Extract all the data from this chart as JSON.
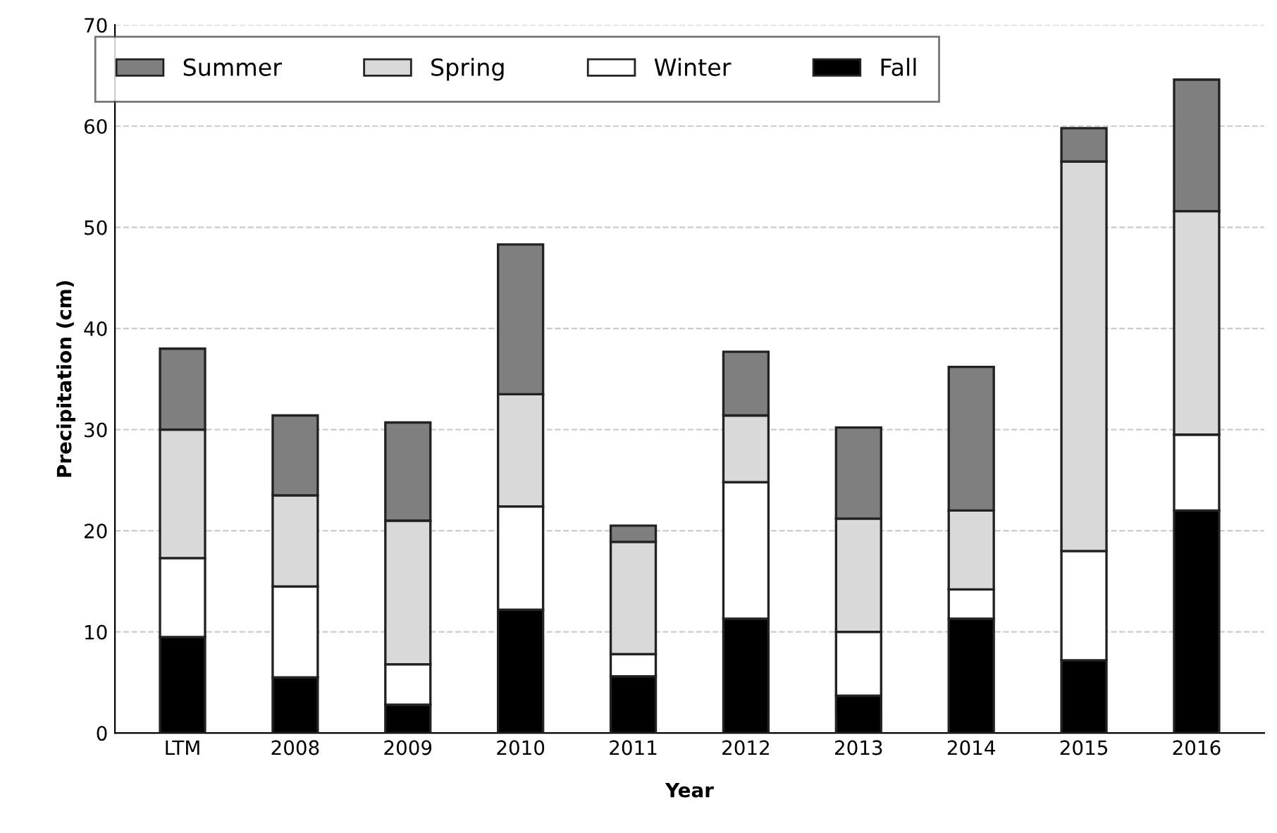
{
  "chart_data": {
    "type": "bar",
    "stacked": true,
    "xlabel": "Year",
    "ylabel": "Precipitation (cm)",
    "categories": [
      "LTM",
      "2008",
      "2009",
      "2010",
      "2011",
      "2012",
      "2013",
      "2014",
      "2015",
      "2016"
    ],
    "series": [
      {
        "name": "Fall",
        "color": "#000000",
        "values": [
          9.5,
          5.5,
          2.8,
          12.2,
          5.6,
          11.3,
          3.7,
          11.3,
          7.2,
          22.0
        ]
      },
      {
        "name": "Winter",
        "color": "#ffffff",
        "values": [
          7.8,
          9.0,
          4.0,
          10.2,
          2.2,
          13.5,
          6.3,
          2.9,
          10.8,
          7.5
        ]
      },
      {
        "name": "Spring",
        "color": "#d9d9d9",
        "values": [
          12.7,
          9.0,
          14.2,
          11.1,
          11.1,
          6.6,
          11.2,
          7.8,
          38.5,
          22.1
        ]
      },
      {
        "name": "Summer",
        "color": "#7f7f7f",
        "values": [
          8.0,
          7.9,
          9.7,
          14.8,
          1.6,
          6.3,
          9.0,
          14.2,
          3.3,
          13.0
        ]
      }
    ],
    "ylim": [
      0,
      70
    ],
    "yticks": [
      0,
      10,
      20,
      30,
      40,
      50,
      60,
      70
    ],
    "grid": "y",
    "legend": "top"
  }
}
